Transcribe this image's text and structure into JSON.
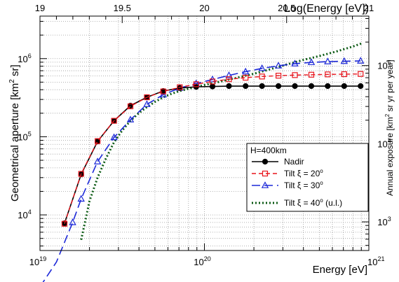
{
  "chart_data": {
    "type": "line",
    "title": "",
    "xlabel": "Energy [eV]",
    "ylabel": "Geometrical aperture [km² sr]",
    "ylabel_parts": {
      "main": "Geometrical aperture [km",
      "sup": "2",
      "tail": " sr]"
    },
    "x_top_label": "Log(Energy [eV])",
    "y_right_label": "Annual exposure [km² sr yr per year]",
    "y_right_label_parts": {
      "main": "Annual exposure [km",
      "sup": "2",
      "tail": " sr yr per year]"
    },
    "x_scale": "log",
    "y_scale": "log",
    "xlim": [
      1e+19,
      1e+21
    ],
    "ylim": [
      3500,
      3500000
    ],
    "x_ticks": [
      {
        "value": 1e+19,
        "base": "10",
        "exp": "19"
      },
      {
        "value": 1e+20,
        "base": "10",
        "exp": "20"
      },
      {
        "value": 1e+21,
        "base": "10",
        "exp": "21"
      }
    ],
    "x_top_ticks": [
      "19",
      "19.5",
      "20",
      "20.5",
      "21"
    ],
    "x_top_values": [
      19,
      19.5,
      20,
      20.5,
      21
    ],
    "y_ticks": [
      {
        "value": 10000,
        "base": "10",
        "exp": "4"
      },
      {
        "value": 100000,
        "base": "10",
        "exp": "5"
      },
      {
        "value": 1000000,
        "base": "10",
        "exp": "6"
      }
    ],
    "y_right_ticks": [
      {
        "value": 1000,
        "base": "10",
        "exp": "3"
      },
      {
        "value": 10000,
        "base": "10",
        "exp": "4"
      },
      {
        "value": 100000,
        "base": "10",
        "exp": "5"
      }
    ],
    "y_right_lim": [
      430,
      430000
    ],
    "grid": true,
    "legend_placement": "right-middle",
    "legend_header": "H=400km",
    "series": [
      {
        "name": "Nadir",
        "label_main": "Nadir",
        "label_sup": "",
        "label_tail": "",
        "color": "#000000",
        "style": "solid-markers",
        "marker": "filled-circle",
        "x": [
          1.41e+19,
          1.78e+19,
          2.24e+19,
          2.82e+19,
          3.55e+19,
          4.47e+19,
          5.62e+19,
          7.08e+19,
          8.91e+19,
          1.12e+20,
          1.41e+20,
          1.78e+20,
          2.24e+20,
          2.82e+20,
          3.55e+20,
          4.47e+20,
          5.62e+20,
          7.08e+20,
          8.91e+20
        ],
        "values": [
          7800,
          33000,
          87000,
          160000,
          250000,
          320000,
          385000,
          420000,
          435000,
          440000,
          445000,
          445000,
          445000,
          445000,
          445000,
          445000,
          445000,
          445000,
          445000
        ]
      },
      {
        "name": "Tilt ξ = 20°",
        "label_main": "Tilt ξ = 20",
        "label_sup": "o",
        "label_tail": "",
        "color": "#e8141c",
        "style": "dashed-markers",
        "marker": "open-square",
        "x": [
          1.41e+19,
          1.78e+19,
          2.24e+19,
          2.82e+19,
          3.55e+19,
          4.47e+19,
          5.62e+19,
          7.08e+19,
          8.91e+19,
          1.12e+20,
          1.41e+20,
          1.78e+20,
          2.24e+20,
          2.82e+20,
          3.55e+20,
          4.47e+20,
          5.62e+20,
          7.08e+20,
          8.91e+20
        ],
        "values": [
          7700,
          33500,
          88000,
          160000,
          245000,
          320000,
          380000,
          430000,
          470000,
          510000,
          545000,
          570000,
          590000,
          605000,
          615000,
          622000,
          628000,
          632000,
          636000
        ]
      },
      {
        "name": "Tilt ξ = 30°",
        "label_main": "Tilt ξ = 30",
        "label_sup": "o",
        "label_tail": "",
        "color": "#1c28d8",
        "style": "long-dashed-markers",
        "marker": "open-triangle",
        "x": [
          1e+19,
          1.26e+19,
          1.58e+19,
          1.78e+19,
          2.24e+19,
          2.82e+19,
          3.55e+19,
          4.47e+19,
          5.62e+19,
          7.08e+19,
          8.91e+19,
          1.12e+20,
          1.41e+20,
          1.78e+20,
          2.24e+20,
          2.82e+20,
          3.55e+20,
          4.47e+20,
          5.62e+20,
          7.08e+20,
          8.91e+20
        ],
        "values": [
          1200,
          2500,
          8000,
          16000,
          48000,
          98000,
          165000,
          260000,
          345000,
          420000,
          480000,
          540000,
          610000,
          680000,
          750000,
          810000,
          860000,
          895000,
          915000,
          925000,
          935000
        ]
      },
      {
        "name": "Tilt ξ = 40° (u.l.)",
        "label_main": "Tilt ξ = 40",
        "label_sup": "o",
        "label_tail": " (u.l.)",
        "color": "#0c5a14",
        "style": "dotted",
        "marker": "none",
        "x": [
          1.78e+19,
          1.9e+19,
          2e+19,
          2.24e+19,
          2.51e+19,
          2.82e+19,
          3.16e+19,
          3.55e+19,
          3.98e+19,
          4.47e+19,
          5.01e+19,
          5.62e+19,
          6.31e+19,
          7.08e+19,
          7.94e+19,
          8.91e+19,
          1e+20,
          1.26e+20,
          1.58e+20,
          2e+20,
          2.51e+20,
          3.16e+20,
          3.98e+20,
          5.01e+20,
          6.31e+20,
          7.94e+20,
          9e+20
        ],
        "values": [
          4800,
          9000,
          15000,
          30000,
          52000,
          85000,
          120000,
          160000,
          200000,
          240000,
          280000,
          320000,
          355000,
          385000,
          410000,
          435000,
          460000,
          510000,
          570000,
          640000,
          730000,
          840000,
          960000,
          1080000,
          1230000,
          1420000,
          1560000
        ]
      }
    ]
  }
}
